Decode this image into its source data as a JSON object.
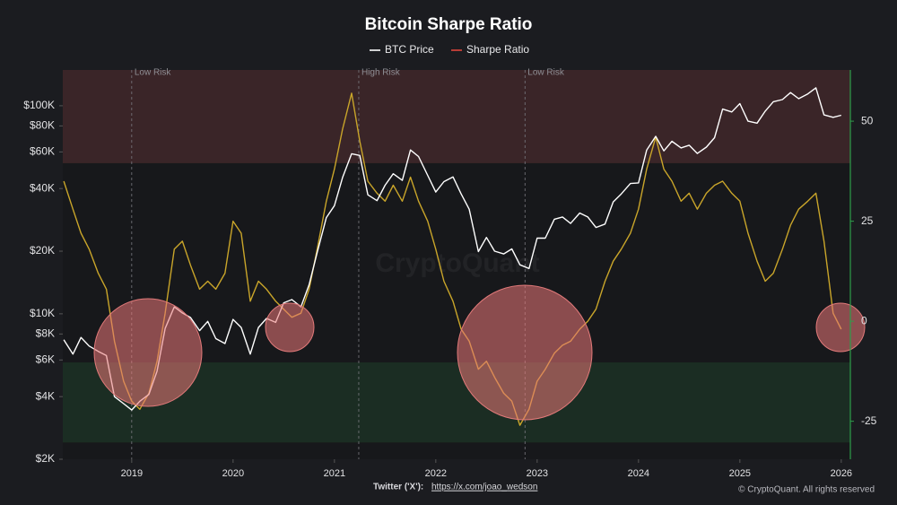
{
  "chart_data": {
    "type": "line",
    "title": "Bitcoin Sharpe Ratio",
    "watermark": "CryptoQuant",
    "source_label": "Twitter ('X'):",
    "source_url": "https://x.com/joao_wedson",
    "copyright": "© CryptoQuant. All rights reserved",
    "x": [
      2018.33,
      2018.42,
      2018.5,
      2018.58,
      2018.67,
      2018.75,
      2018.83,
      2018.92,
      2019,
      2019.08,
      2019.17,
      2019.25,
      2019.33,
      2019.42,
      2019.5,
      2019.58,
      2019.67,
      2019.75,
      2019.83,
      2019.92,
      2020,
      2020.08,
      2020.17,
      2020.25,
      2020.33,
      2020.42,
      2020.5,
      2020.58,
      2020.67,
      2020.75,
      2020.83,
      2020.92,
      2021,
      2021.08,
      2021.17,
      2021.25,
      2021.33,
      2021.42,
      2021.5,
      2021.58,
      2021.67,
      2021.75,
      2021.83,
      2021.92,
      2022,
      2022.08,
      2022.17,
      2022.25,
      2022.33,
      2022.42,
      2022.5,
      2022.58,
      2022.67,
      2022.75,
      2022.83,
      2022.92,
      2023,
      2023.08,
      2023.17,
      2023.25,
      2023.33,
      2023.42,
      2023.5,
      2023.58,
      2023.67,
      2023.75,
      2023.83,
      2023.92,
      2024,
      2024.08,
      2024.17,
      2024.25,
      2024.33,
      2024.42,
      2024.5,
      2024.58,
      2024.67,
      2024.75,
      2024.83,
      2024.92,
      2025,
      2025.08,
      2025.17,
      2025.25,
      2025.33,
      2025.42,
      2025.5,
      2025.58,
      2025.67,
      2025.75,
      2025.83,
      2025.92,
      2026
    ],
    "series": [
      {
        "name": "BTC Price",
        "color": "#ffffff",
        "axis": "y",
        "values": [
          7500,
          6400,
          7700,
          7000,
          6600,
          6300,
          4000,
          3700,
          3450,
          3800,
          4100,
          5300,
          8500,
          10800,
          10100,
          9600,
          8300,
          9200,
          7600,
          7200,
          9400,
          8600,
          6400,
          8600,
          9500,
          9100,
          11300,
          11700,
          10800,
          13800,
          19700,
          29000,
          33100,
          45200,
          58800,
          57700,
          37300,
          35000,
          41500,
          47100,
          43800,
          61300,
          57000,
          46300,
          38500,
          43200,
          45500,
          37700,
          31800,
          19900,
          23300,
          20000,
          19400,
          20500,
          17200,
          16500,
          23100,
          23100,
          28500,
          29200,
          27200,
          30500,
          29200,
          26000,
          27000,
          34500,
          37700,
          42300,
          42600,
          61200,
          71300,
          60700,
          67500,
          62700,
          64600,
          59000,
          63300,
          70200,
          96400,
          93400,
          102400,
          84300,
          82500,
          94200,
          104600,
          107100,
          115700,
          108200,
          114000,
          122000,
          90400,
          88000,
          90000
        ]
      },
      {
        "name": "Sharpe Ratio",
        "color": "#c9a52a",
        "legend_color": "#e0463c",
        "axis": "y2",
        "values": [
          35,
          28,
          22,
          18,
          12,
          8,
          -5,
          -15,
          -20,
          -22,
          -18,
          -10,
          2,
          18,
          20,
          14,
          8,
          10,
          8,
          12,
          25,
          22,
          5,
          10,
          8,
          5,
          3,
          1,
          2,
          8,
          18,
          30,
          38,
          48,
          57,
          45,
          35,
          32,
          30,
          34,
          30,
          36,
          30,
          25,
          18,
          10,
          5,
          -2,
          -5,
          -12,
          -10,
          -14,
          -18,
          -20,
          -26,
          -22,
          -15,
          -12,
          -8,
          -6,
          -5,
          -2,
          0,
          3,
          10,
          15,
          18,
          22,
          28,
          38,
          46,
          38,
          35,
          30,
          32,
          28,
          32,
          34,
          35,
          32,
          30,
          22,
          15,
          10,
          12,
          18,
          24,
          28,
          30,
          32,
          20,
          2,
          -2
        ]
      }
    ],
    "xlim": [
      2018.32,
      2026.09
    ],
    "xticks": [
      2019,
      2020,
      2021,
      2022,
      2023,
      2024,
      2025,
      2026
    ],
    "ylim": [
      2000,
      148600
    ],
    "log_scale": true,
    "yticks": [
      {
        "value": 2000,
        "label": "$2K"
      },
      {
        "value": 4000,
        "label": "$4K"
      },
      {
        "value": 6000,
        "label": "$6K"
      },
      {
        "value": 8000,
        "label": "$8K"
      },
      {
        "value": 10000,
        "label": "$10K"
      },
      {
        "value": 20000,
        "label": "$20K"
      },
      {
        "value": 40000,
        "label": "$40K"
      },
      {
        "value": 60000,
        "label": "$60K"
      },
      {
        "value": 80000,
        "label": "$80K"
      },
      {
        "value": 100000,
        "label": "$100K"
      }
    ],
    "y2lim": [
      -34.5,
      62.8
    ],
    "y2ticks": [
      -25,
      0,
      25,
      50
    ],
    "y2_bands": [
      {
        "from": 39.5,
        "to": 62.8,
        "color": "#3a2528"
      },
      {
        "from": -30.3,
        "to": -10.3,
        "color": "#1b2d23"
      }
    ],
    "annotations": [
      {
        "x": 2019,
        "text": "Low Risk"
      },
      {
        "x": 2021.24,
        "text": "High Risk"
      },
      {
        "x": 2022.88,
        "text": "Low Risk"
      }
    ],
    "legend_position": "top"
  }
}
